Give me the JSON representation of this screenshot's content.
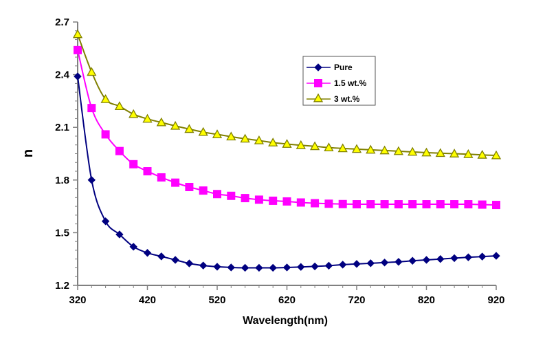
{
  "chart_data": {
    "type": "line",
    "title": "",
    "xlabel": "Wavelength(nm)",
    "ylabel": "n",
    "xlim": [
      320,
      920
    ],
    "ylim": [
      1.2,
      2.7
    ],
    "xticks": [
      320,
      420,
      520,
      620,
      720,
      820,
      920
    ],
    "xtick_labels": [
      "320",
      "420",
      "520",
      "620",
      "720",
      "820",
      "920"
    ],
    "x_minor_step": 20,
    "yticks": [
      1.2,
      1.5,
      1.8,
      2.1,
      2.4,
      2.7
    ],
    "ytick_labels": [
      "1.2",
      "1.5",
      "1.8",
      "2.1",
      "2.4",
      "2.7"
    ],
    "y_minor_step": 0.05,
    "grid": false,
    "legend_position": "top-center-right",
    "x": [
      320,
      340,
      360,
      380,
      400,
      420,
      440,
      460,
      480,
      500,
      520,
      540,
      560,
      580,
      600,
      620,
      640,
      660,
      680,
      700,
      720,
      740,
      760,
      780,
      800,
      820,
      840,
      860,
      880,
      900,
      920
    ],
    "series": [
      {
        "name": "Pure",
        "color": "#000080",
        "marker": "diamond",
        "marker_fill": "#000080",
        "values": [
          2.39,
          1.8,
          1.565,
          1.49,
          1.42,
          1.385,
          1.365,
          1.345,
          1.325,
          1.313,
          1.306,
          1.302,
          1.3,
          1.3,
          1.3,
          1.302,
          1.305,
          1.308,
          1.312,
          1.318,
          1.322,
          1.326,
          1.33,
          1.334,
          1.34,
          1.345,
          1.35,
          1.355,
          1.36,
          1.364,
          1.368
        ]
      },
      {
        "name": "1.5 wt.%",
        "color": "#FF00FF",
        "marker": "square",
        "marker_fill": "#FF00FF",
        "values": [
          2.54,
          2.21,
          2.06,
          1.965,
          1.89,
          1.85,
          1.815,
          1.785,
          1.76,
          1.74,
          1.72,
          1.71,
          1.697,
          1.688,
          1.682,
          1.678,
          1.672,
          1.668,
          1.665,
          1.663,
          1.662,
          1.662,
          1.662,
          1.662,
          1.662,
          1.662,
          1.662,
          1.662,
          1.662,
          1.66,
          1.658
        ]
      },
      {
        "name": "3 wt.%",
        "color": "#808000",
        "marker": "triangle",
        "marker_fill": "#FFFF00",
        "values": [
          2.63,
          2.415,
          2.26,
          2.22,
          2.175,
          2.148,
          2.128,
          2.108,
          2.09,
          2.073,
          2.06,
          2.047,
          2.035,
          2.025,
          2.013,
          2.005,
          1.998,
          1.992,
          1.985,
          1.98,
          1.976,
          1.972,
          1.968,
          1.964,
          1.96,
          1.956,
          1.953,
          1.95,
          1.947,
          1.943,
          1.94
        ]
      }
    ]
  }
}
